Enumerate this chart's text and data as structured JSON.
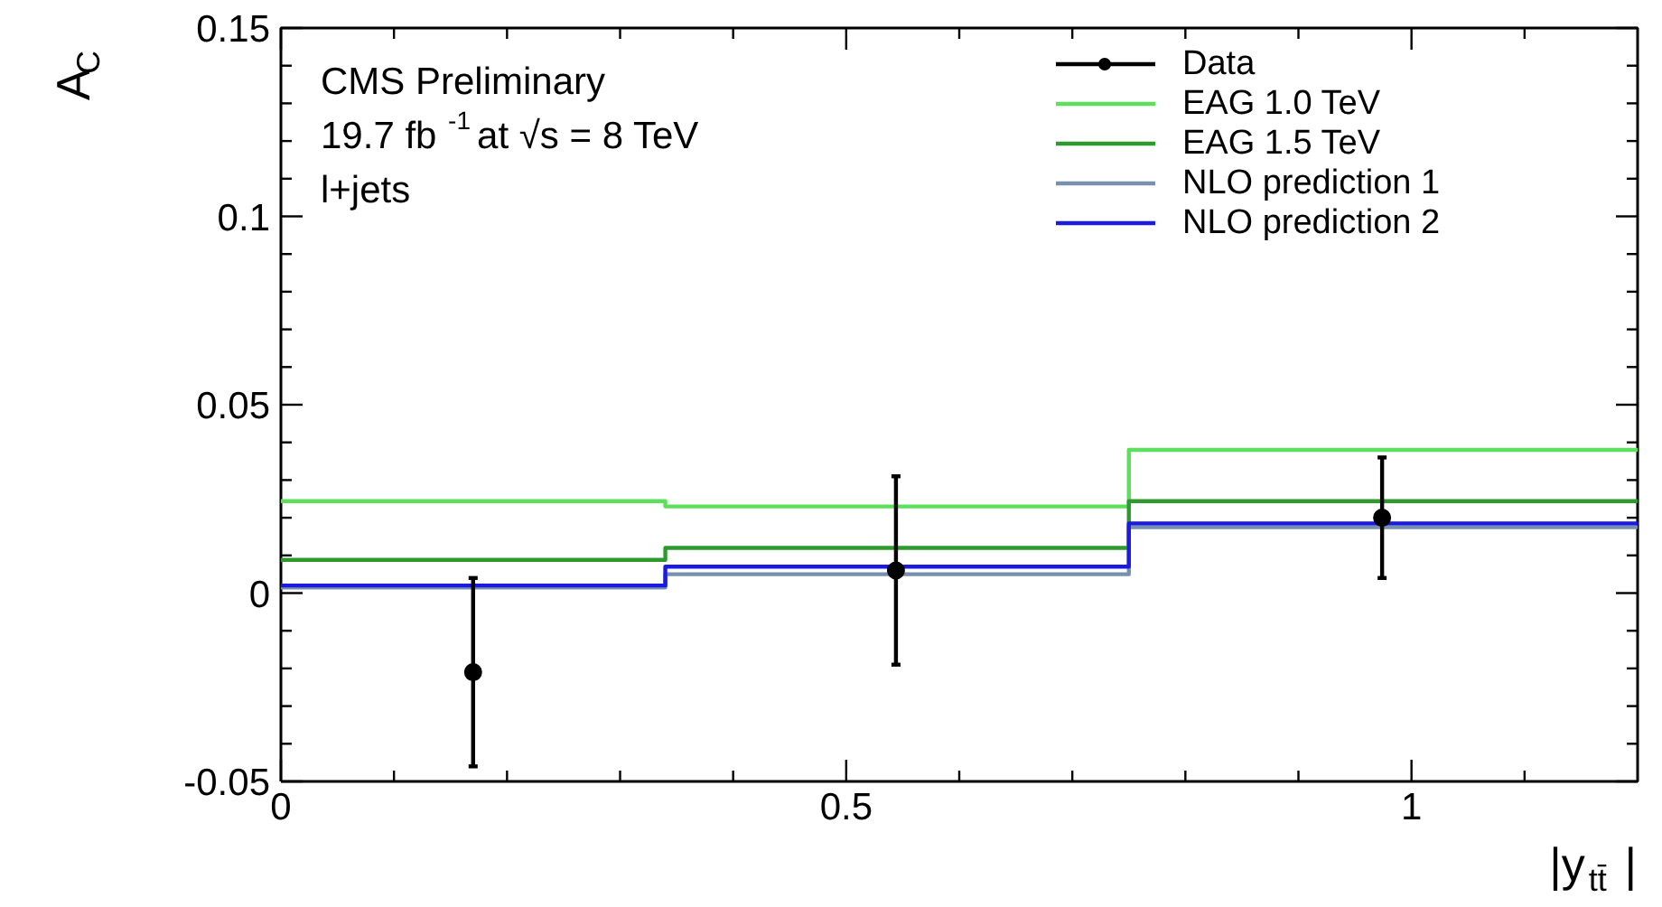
{
  "chart_data": {
    "type": "step",
    "xlabel": "|y$_{tt̄}$|",
    "ylabel": "A$_{C}$",
    "xlim": [
      0,
      1.2
    ],
    "ylim": [
      -0.05,
      0.15
    ],
    "xticks": [
      0,
      0.5,
      1
    ],
    "yticks": [
      -0.05,
      0,
      0.05,
      0.1,
      0.15
    ],
    "grid": false,
    "legend": "top right",
    "annotations": [
      "CMS Preliminary",
      "19.7 fb$^{-1}$ at  √s = 8 TeV",
      "l+jets"
    ],
    "series": [
      {
        "name": "Data",
        "type": "scatter",
        "marker": "circle",
        "color": "#000000",
        "x": [
          0.17,
          0.544,
          0.974
        ],
        "values": [
          -0.021,
          0.006,
          0.02
        ],
        "errors": [
          0.025,
          0.025,
          0.016
        ]
      },
      {
        "name": "EAG 1.0 TeV",
        "color": "#5ce05c",
        "x": [
          0,
          0.34,
          0.75,
          1.2
        ],
        "values": [
          0.0244,
          0.023,
          0.038,
          0.038
        ]
      },
      {
        "name": "EAG 1.5 TeV",
        "color": "#2e9a2e",
        "x": [
          0,
          0.34,
          0.75,
          1.2
        ],
        "values": [
          0.0088,
          0.012,
          0.0244,
          0.0244
        ]
      },
      {
        "name": "NLO prediction 1",
        "color": "#7890b0",
        "x": [
          0,
          0.34,
          0.75,
          1.2
        ],
        "values": [
          0.0015,
          0.005,
          0.0175,
          0.0175
        ]
      },
      {
        "name": "NLO prediction 2",
        "color": "#1a1ae0",
        "x": [
          0,
          0.34,
          0.75,
          1.2
        ],
        "values": [
          0.002,
          0.007,
          0.0185,
          0.0185
        ]
      }
    ]
  }
}
